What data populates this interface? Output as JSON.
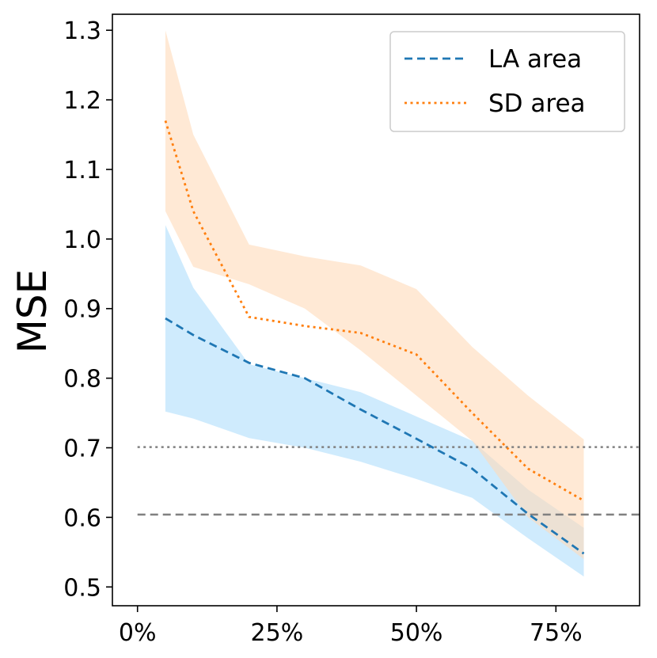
{
  "chart_data": {
    "type": "line",
    "title": "",
    "xlabel": "",
    "ylabel": "MSE",
    "xlim": [
      -0.045,
      0.9
    ],
    "ylim": [
      0.473,
      1.323
    ],
    "x_ticks": [
      0,
      0.25,
      0.5,
      0.75
    ],
    "x_tick_labels": [
      "0%",
      "25%",
      "50%",
      "75%"
    ],
    "y_ticks": [
      0.5,
      0.6,
      0.7,
      0.8,
      0.9,
      1.0,
      1.1,
      1.2,
      1.3
    ],
    "y_tick_labels": [
      "0.5",
      "0.6",
      "0.7",
      "0.8",
      "0.9",
      "1.0",
      "1.1",
      "1.2",
      "1.3"
    ],
    "grid": false,
    "legend_position": "top-right",
    "reference_lines": [
      {
        "name": "dotted-reference",
        "y": 0.701,
        "x_range": [
          0,
          0.9
        ],
        "style": "dotted",
        "color": "#808080"
      },
      {
        "name": "dashed-reference",
        "y": 0.604,
        "x_range": [
          0,
          0.9
        ],
        "style": "dashed",
        "color": "#808080"
      }
    ],
    "series": [
      {
        "name": "LA area",
        "color": "#1f77b4",
        "band_color": "#87cefa",
        "style": "dashed",
        "x": [
          0.05,
          0.1,
          0.2,
          0.3,
          0.4,
          0.5,
          0.6,
          0.7,
          0.8
        ],
        "values": [
          0.886,
          0.862,
          0.822,
          0.8,
          0.755,
          0.713,
          0.67,
          0.605,
          0.548
        ],
        "upper": [
          1.02,
          0.93,
          0.82,
          0.8,
          0.78,
          0.745,
          0.71,
          0.64,
          0.585
        ],
        "lower": [
          0.752,
          0.742,
          0.714,
          0.7,
          0.68,
          0.655,
          0.628,
          0.57,
          0.515
        ]
      },
      {
        "name": "SD area",
        "color": "#ff7f0e",
        "band_color": "#ffdab9",
        "style": "dotted",
        "x": [
          0.05,
          0.1,
          0.2,
          0.3,
          0.4,
          0.5,
          0.6,
          0.7,
          0.8
        ],
        "values": [
          1.17,
          1.04,
          0.888,
          0.875,
          0.865,
          0.834,
          0.75,
          0.67,
          0.624
        ],
        "upper": [
          1.3,
          1.15,
          0.992,
          0.975,
          0.962,
          0.928,
          0.845,
          0.775,
          0.712
        ],
        "lower": [
          1.04,
          0.96,
          0.935,
          0.9,
          0.84,
          0.775,
          0.71,
          0.6,
          0.54
        ]
      }
    ]
  }
}
